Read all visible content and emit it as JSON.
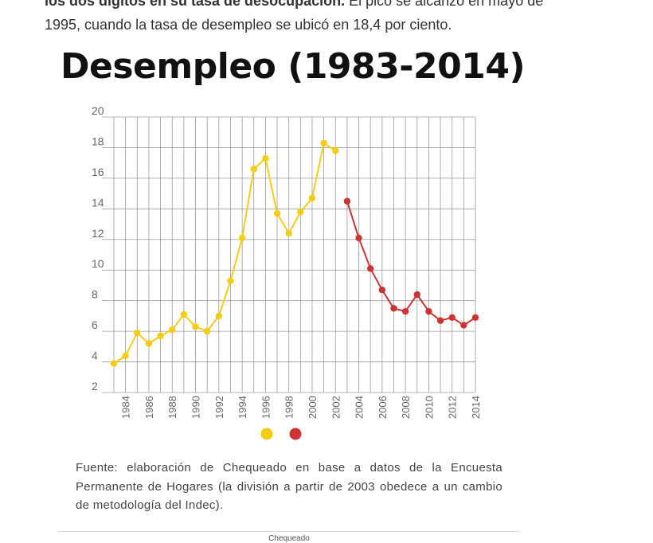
{
  "article": {
    "line1_bold": "los dos dígitos en su tasa de desocupación.",
    "line1_rest": " El pico se alcanzó en mayo de",
    "line2": "1995, cuando la tasa de desempleo se ubicó en 18,4 por ciento."
  },
  "chart_data": {
    "type": "line",
    "title": "Desempleo (1983-2014)",
    "xlabel": "",
    "ylabel": "",
    "xlim": [
      1983,
      2014
    ],
    "ylim": [
      2,
      20
    ],
    "y_ticks": [
      "2",
      "4",
      "6",
      "8",
      "10",
      "12",
      "14",
      "16",
      "18",
      "20"
    ],
    "x_ticks": [
      "1984",
      "1986",
      "1988",
      "1990",
      "1992",
      "1994",
      "1996",
      "1998",
      "2000",
      "2002",
      "2004",
      "2006",
      "2008",
      "2010",
      "2012",
      "2014"
    ],
    "grid": true,
    "legend_placement": "bottom-center",
    "series": [
      {
        "color": "#f5cc14",
        "x": [
          1983,
          1984,
          1985,
          1986,
          1987,
          1988,
          1989,
          1990,
          1991,
          1992,
          1993,
          1994,
          1995,
          1996,
          1997,
          1998,
          1999,
          2000,
          2001,
          2002
        ],
        "values": [
          3.9,
          4.4,
          5.9,
          5.2,
          5.7,
          6.1,
          7.1,
          6.3,
          6.0,
          7.0,
          9.3,
          12.1,
          16.6,
          17.3,
          13.7,
          12.4,
          13.8,
          14.7,
          18.3,
          17.8
        ]
      },
      {
        "color": "#cc3333",
        "x": [
          2003,
          2004,
          2005,
          2006,
          2007,
          2008,
          2009,
          2010,
          2011,
          2012,
          2013,
          2014
        ],
        "values": [
          14.5,
          12.1,
          10.1,
          8.7,
          7.5,
          7.3,
          8.4,
          7.3,
          6.7,
          6.9,
          6.4,
          6.9
        ]
      }
    ]
  },
  "source": {
    "text": "Fuente: elaboración de Chequeado en base a datos de la Encuesta Permanente de Hogares (la división a partir de 2003 obedece a un cambio de metodología del Indec)."
  },
  "credit": {
    "text": "Chequeado"
  }
}
